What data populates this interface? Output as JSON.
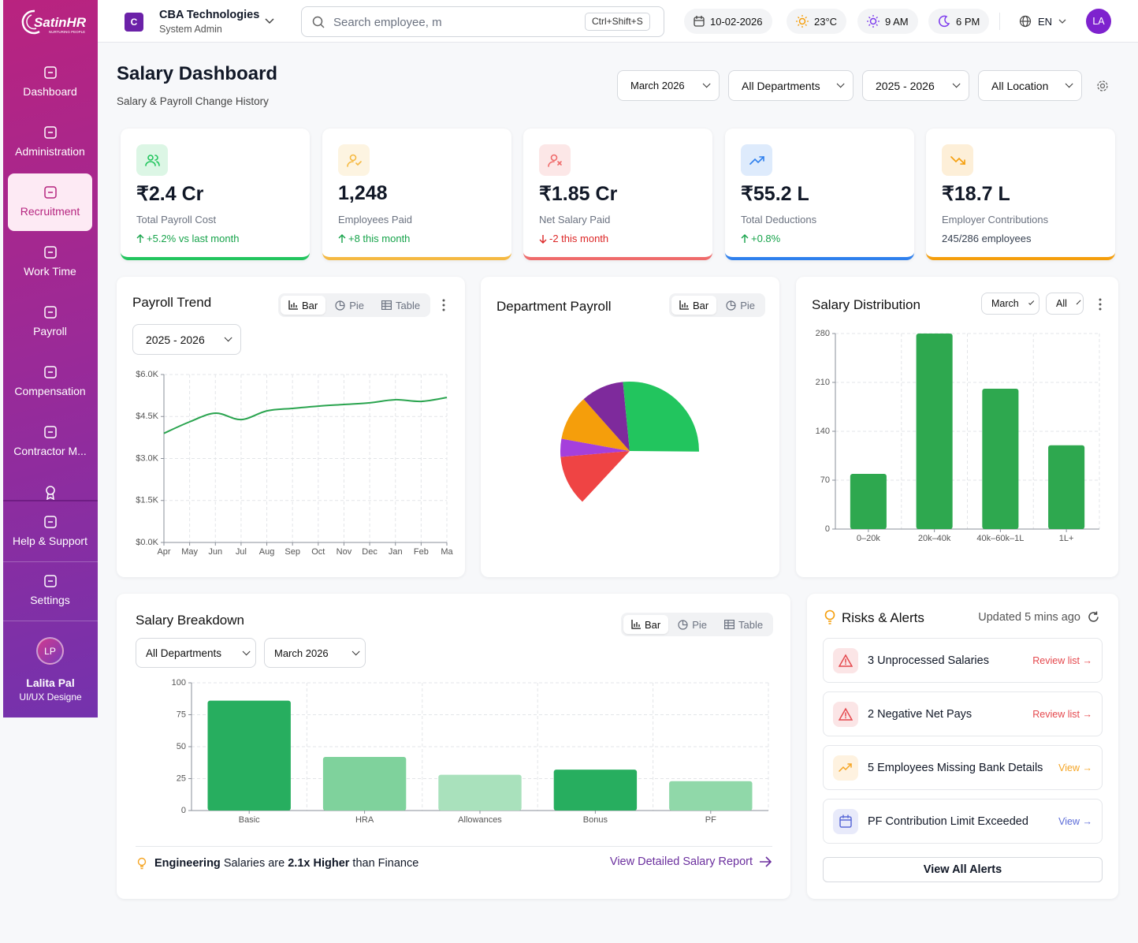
{
  "sidebar": {
    "brand": "SatinHR",
    "tagline": "NURTURING PEOPLE",
    "nav": [
      {
        "label": "Dashboard"
      },
      {
        "label": "Administration"
      },
      {
        "label": "Recruitment",
        "active": true
      },
      {
        "label": "Work Time"
      },
      {
        "label": "Payroll"
      },
      {
        "label": "Compensation"
      },
      {
        "label": "Contractor M..."
      }
    ],
    "support_nav": [
      {
        "label": "Help & Support"
      },
      {
        "label": "Settings"
      }
    ],
    "user": {
      "initials": "LP",
      "name": "Lalita Pal",
      "role": "UI/UX Designe"
    }
  },
  "topbar": {
    "company_initial": "C",
    "company": "CBA Technologies",
    "role": "System Admin",
    "search_placeholder": "Search employee, m",
    "shortcut": "Ctrl+Shift+S",
    "date": "10-02-2026",
    "temperature": "23°C",
    "start_time": "9 AM",
    "end_time": "6 PM",
    "language": "EN",
    "avatar": "LA"
  },
  "header": {
    "title": "Salary Dashboard",
    "subtitle": "Salary & Payroll Change History",
    "filters": [
      "March 2026",
      "All Departments",
      "2025 - 2026",
      "All Location"
    ]
  },
  "kpis": [
    {
      "value": "₹2.4 Cr",
      "label": "Total Payroll Cost",
      "change": "+5.2% vs last month",
      "trend": "up",
      "color": "#22c55e"
    },
    {
      "value": "1,248",
      "label": "Employees Paid",
      "change": "+8 this month",
      "trend": "up",
      "color": "#f5b942"
    },
    {
      "value": "₹1.85 Cr",
      "label": "Net Salary Paid",
      "change": "-2 this month",
      "trend": "down",
      "color": "#ef6b6b"
    },
    {
      "value": "₹55.2 L",
      "label": "Total Deductions",
      "change": "+0.8%",
      "trend": "up",
      "color": "#2f80ed"
    },
    {
      "value": "₹18.7 L",
      "label": "Employer Contributions",
      "change": "245/286 employees",
      "color": "#f59e0b"
    }
  ],
  "payroll_trend": {
    "title": "Payroll Trend",
    "tabs": [
      "Bar",
      "Pie",
      "Table"
    ],
    "period": "2025 - 2026",
    "chart": {
      "type": "line",
      "categories": [
        "Apr",
        "May",
        "Jun",
        "Jul",
        "Aug",
        "Sep",
        "Oct",
        "Nov",
        "Dec",
        "Jan",
        "Feb",
        "Ma"
      ],
      "values": [
        3900,
        4310,
        4620,
        4390,
        4700,
        4790,
        4870,
        4930,
        4990,
        5100,
        5040,
        5180
      ],
      "color": "#2aa44f",
      "ylim": [
        0,
        6000
      ],
      "yticks": [
        {
          "value": 0,
          "label": "$0.0K"
        },
        {
          "value": 1500,
          "label": "$1.5K"
        },
        {
          "value": 3000,
          "label": "$3.0K"
        },
        {
          "value": 4500,
          "label": "$4.5K"
        },
        {
          "value": 6000,
          "label": "$6.0K"
        }
      ],
      "grid": true
    }
  },
  "department_payroll": {
    "title": "Department Payroll",
    "tabs": [
      "Bar",
      "Pie"
    ],
    "chart": {
      "type": "pie",
      "values": [
        11.7,
        4.2,
        10.6,
        10,
        26.7
      ],
      "colors": [
        "#ef4444",
        "#a53fdc",
        "#f59e0b",
        "#7e2a9c",
        "#22c55e"
      ],
      "start_angle": 223
    }
  },
  "salary_distribution": {
    "title": "Salary Distribution",
    "filters": [
      "March",
      "All"
    ],
    "chart": {
      "type": "bar",
      "categories": [
        "0–20k",
        "20k–40k",
        "40k–60k–1L",
        "1L+"
      ],
      "values": [
        79,
        280,
        201,
        120
      ],
      "color": "#2ea84f",
      "ylim": [
        0,
        280
      ],
      "yticks": [
        0,
        70,
        140,
        210,
        280
      ],
      "grid": true
    }
  },
  "salary_breakdown": {
    "title": "Salary Breakdown",
    "tabs": [
      "Bar",
      "Pie",
      "Table"
    ],
    "filters": [
      "All Departments",
      "March 2026"
    ],
    "chart": {
      "type": "bar",
      "categories": [
        "Basic",
        "HRA",
        "Allowances",
        "Bonus",
        "PF"
      ],
      "values": [
        86,
        42,
        28,
        32,
        23
      ],
      "colors": [
        "#27ae5f",
        "#7fd29c",
        "#a9e1bc",
        "#27ae5f",
        "#90d8a9"
      ],
      "ylim": [
        0,
        100
      ],
      "yticks": [
        0,
        25,
        50,
        75,
        100
      ],
      "grid": true
    },
    "insight": [
      {
        "text": "Engineering",
        "bold": true
      },
      {
        "text": " Salaries are "
      },
      {
        "text": "2.1x Higher",
        "bold": true
      },
      {
        "text": " than Finance"
      }
    ],
    "link": "View Detailed Salary Report"
  },
  "risks": {
    "title": "Risks & Alerts",
    "updated": "Updated 5 mins ago",
    "items": [
      {
        "text": "3 Unprocessed Salaries",
        "action": "Review list →",
        "color": "#e5484d"
      },
      {
        "text": "2 Negative Net Pays",
        "action": "Review list →",
        "color": "#e5484d"
      },
      {
        "text": "5 Employees Missing Bank Details",
        "action": "View →",
        "color": "#f5a524"
      },
      {
        "text": "PF Contribution Limit Exceeded",
        "action": "View →",
        "color": "#5b6bd8"
      }
    ],
    "button": "View All Alerts"
  }
}
